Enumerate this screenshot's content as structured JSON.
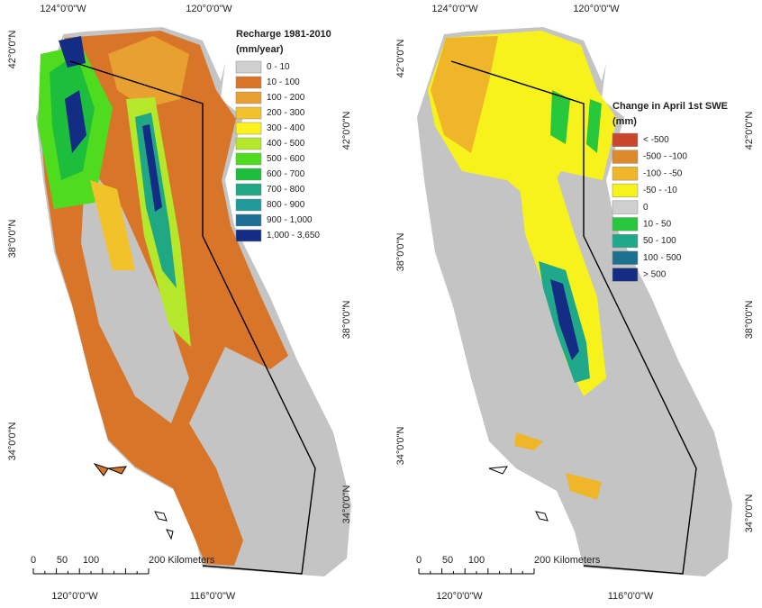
{
  "panels": [
    {
      "legend": {
        "title": "Recharge 1981-2010",
        "unit": "(mm/year)",
        "items": [
          {
            "label": "0 - 10",
            "color": "#cfcfcf"
          },
          {
            "label": "10 - 100",
            "color": "#d97528"
          },
          {
            "label": "100 - 200",
            "color": "#e8a030"
          },
          {
            "label": "200 - 300",
            "color": "#f2c22a"
          },
          {
            "label": "300 - 400",
            "color": "#fbf21c"
          },
          {
            "label": "400 - 500",
            "color": "#b5e82a"
          },
          {
            "label": "500 - 600",
            "color": "#4fdc1e"
          },
          {
            "label": "600 - 700",
            "color": "#1dbe3c"
          },
          {
            "label": "700 - 800",
            "color": "#20a884"
          },
          {
            "label": "800 - 900",
            "color": "#1e9a9a"
          },
          {
            "label": "900 - 1,000",
            "color": "#1c6e94"
          },
          {
            "label": "1,000 - 3,650",
            "color": "#132c84"
          }
        ]
      },
      "graticule": {
        "top": [
          "124°0'0\"W",
          "120°0'0\"W"
        ],
        "bottom": [
          "120°0'0\"W",
          "116°0'0\"W"
        ],
        "left": [
          "42°0'0\"N",
          "38°0'0\"N",
          "34°0'0\"N"
        ],
        "right": [
          "42°0'0\"N",
          "38°0'0\"N",
          "34°0'0\"N"
        ]
      },
      "scale_bar": [
        "0",
        "50",
        "100",
        "200 Kilometers"
      ]
    },
    {
      "legend": {
        "title": "Change in April 1st SWE",
        "unit": "(mm)",
        "items": [
          {
            "label": "< -500",
            "color": "#c8462c"
          },
          {
            "label": "-500 - -100",
            "color": "#dd8a2c"
          },
          {
            "label": "-100 - -50",
            "color": "#efb62a"
          },
          {
            "label": "-50 - -10",
            "color": "#f8f21c"
          },
          {
            "label": "0",
            "color": "#cfcfcf"
          },
          {
            "label": "10 - 50",
            "color": "#28c83c"
          },
          {
            "label": "50 - 100",
            "color": "#20a88a"
          },
          {
            "label": "100 - 500",
            "color": "#1c7090"
          },
          {
            "label": "> 500",
            "color": "#142c84"
          }
        ]
      },
      "graticule": {
        "top": [
          "124°0'0\"W",
          "120°0'0\"W"
        ],
        "bottom": [
          "120°0'0\"W",
          "116°0'0\"W"
        ],
        "left": [
          "42°0'0\"N",
          "38°0'0\"N",
          "34°0'0\"N"
        ],
        "right": [
          "42°0'0\"N",
          "38°0'0\"N",
          "34°0'0\"N"
        ]
      },
      "scale_bar": [
        "0",
        "50",
        "100",
        "200 Kilometers"
      ]
    }
  ]
}
